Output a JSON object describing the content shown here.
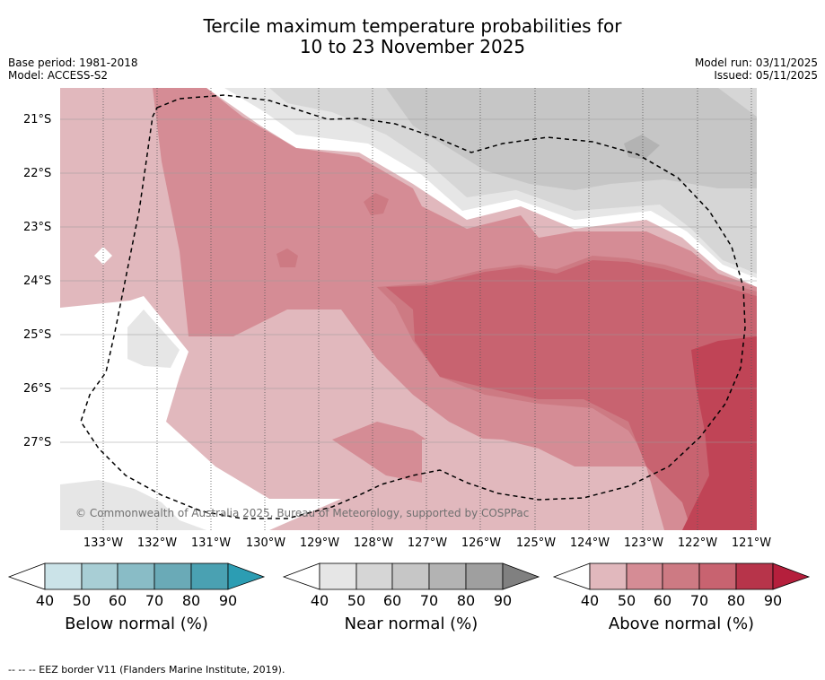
{
  "title": {
    "line1": "Tercile maximum temperature probabilities for",
    "line2": "10 to 23 November 2025"
  },
  "meta": {
    "base_period": "Base period: 1981-2018",
    "model": "Model: ACCESS-S2",
    "model_run": "Model run: 03/11/2025",
    "issued": "Issued: 05/11/2025"
  },
  "map": {
    "latitude_labels": [
      "21°S",
      "22°S",
      "23°S",
      "24°S",
      "25°S",
      "26°S",
      "27°S"
    ],
    "longitude_labels": [
      "133°W",
      "132°W",
      "131°W",
      "130°W",
      "129°W",
      "128°W",
      "127°W",
      "126°W",
      "125°W",
      "124°W",
      "123°W",
      "122°W",
      "121°W"
    ],
    "copyright": "© Commonwealth of Australia 2025, Bureau of Meteorology, supported by COSPPac"
  },
  "colorbars": [
    {
      "title": "Below normal (%)",
      "ticks": [
        "40",
        "50",
        "60",
        "70",
        "80",
        "90"
      ],
      "colors": [
        "#ffffff",
        "#cbe3e8",
        "#a8ced5",
        "#89bcc6",
        "#6aaab7",
        "#4aa1b2",
        "#2c9db3"
      ]
    },
    {
      "title": "Near normal (%)",
      "ticks": [
        "40",
        "50",
        "60",
        "70",
        "80",
        "90"
      ],
      "colors": [
        "#ffffff",
        "#e6e6e6",
        "#d6d6d6",
        "#c6c6c6",
        "#b3b3b3",
        "#9f9f9f",
        "#808080"
      ]
    },
    {
      "title": "Above normal (%)",
      "ticks": [
        "40",
        "50",
        "60",
        "70",
        "80",
        "90"
      ],
      "colors": [
        "#ffffff",
        "#e1b8bd",
        "#d58c95",
        "#cd7a83",
        "#c86370",
        "#b7344a",
        "#b51f3c"
      ]
    }
  ],
  "footnote": "--  --  -- EEZ border V11 (Flanders Marine Institute, 2019)."
}
